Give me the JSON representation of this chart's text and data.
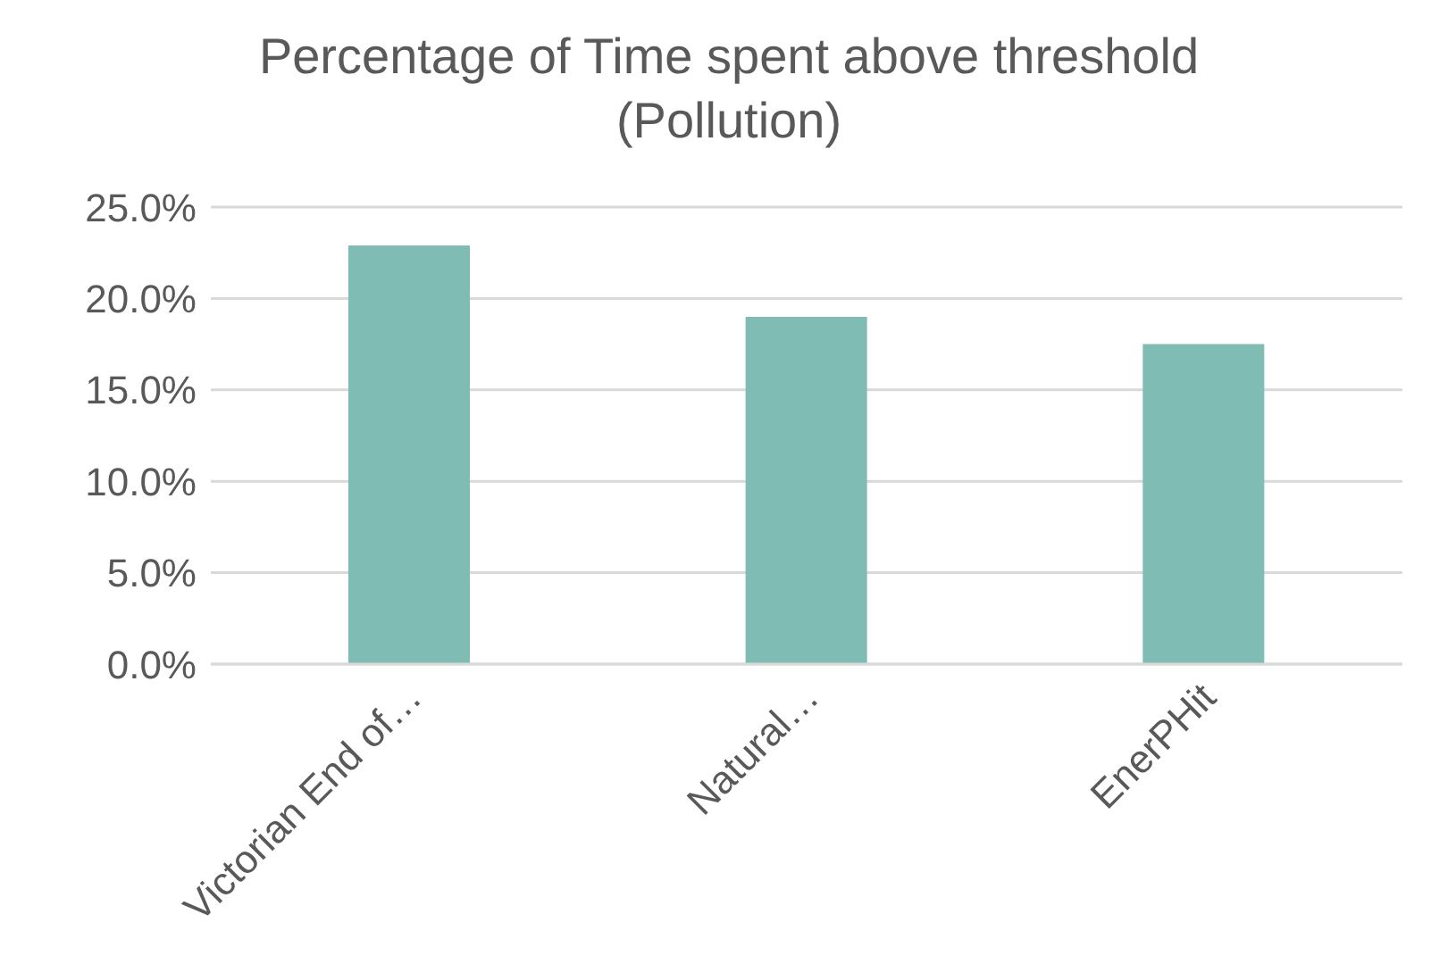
{
  "chart_data": {
    "type": "bar",
    "title": "Percentage of Time spent above threshold (Pollution)",
    "categories": [
      "Victorian End of…",
      "Natural…",
      "EnerPHit"
    ],
    "values": [
      22.9,
      19.0,
      17.5
    ],
    "color": "#7fbcb3",
    "ylim": [
      0,
      25
    ],
    "yticks": [
      {
        "value": 0,
        "label": "0.0%"
      },
      {
        "value": 5,
        "label": "5.0%"
      },
      {
        "value": 10,
        "label": "10.0%"
      },
      {
        "value": 15,
        "label": "15.0%"
      },
      {
        "value": 20,
        "label": "20.0%"
      },
      {
        "value": 25,
        "label": "25.0%"
      }
    ],
    "grid": "y",
    "legend": false
  }
}
